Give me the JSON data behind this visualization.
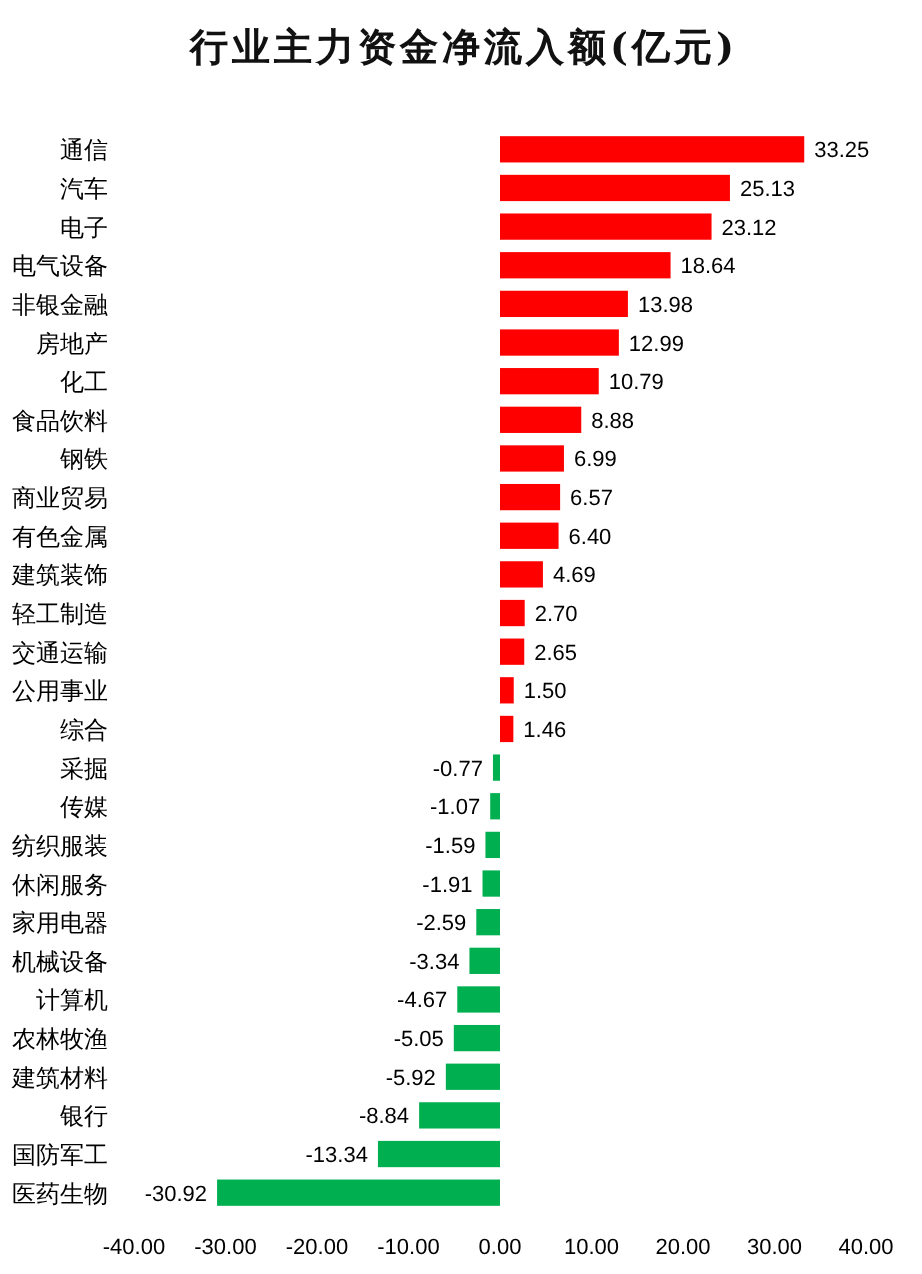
{
  "chart_data": {
    "type": "bar",
    "orientation": "horizontal",
    "title": "行业主力资金净流入额(亿元)",
    "categories": [
      "通信",
      "汽车",
      "电子",
      "电气设备",
      "非银金融",
      "房地产",
      "化工",
      "食品饮料",
      "钢铁",
      "商业贸易",
      "有色金属",
      "建筑装饰",
      "轻工制造",
      "交通运输",
      "公用事业",
      "综合",
      "采掘",
      "传媒",
      "纺织服装",
      "休闲服务",
      "家用电器",
      "机械设备",
      "计算机",
      "农林牧渔",
      "建筑材料",
      "银行",
      "国防军工",
      "医药生物"
    ],
    "values": [
      33.25,
      25.13,
      23.12,
      18.64,
      13.98,
      12.99,
      10.79,
      8.88,
      6.99,
      6.57,
      6.4,
      4.69,
      2.7,
      2.65,
      1.5,
      1.46,
      -0.77,
      -1.07,
      -1.59,
      -1.91,
      -2.59,
      -3.34,
      -4.67,
      -5.05,
      -5.92,
      -8.84,
      -13.34,
      -30.92
    ],
    "value_labels": [
      "33.25",
      "25.13",
      "23.12",
      "18.64",
      "13.98",
      "12.99",
      "10.79",
      "8.88",
      "6.99",
      "6.57",
      "6.40",
      "4.69",
      "2.70",
      "2.65",
      "1.50",
      "1.46",
      "-0.77",
      "-1.07",
      "-1.59",
      "-1.91",
      "-2.59",
      "-3.34",
      "-4.67",
      "-5.05",
      "-5.92",
      "-8.84",
      "-13.34",
      "-30.92"
    ],
    "colors": [
      "#ff0000",
      "#ff0000",
      "#ff0000",
      "#ff0000",
      "#ff0000",
      "#ff0000",
      "#ff0000",
      "#ff0000",
      "#ff0000",
      "#ff0000",
      "#ff0000",
      "#ff0000",
      "#ff0000",
      "#ff0000",
      "#ff0000",
      "#ff0000",
      "#00b050",
      "#00b050",
      "#00b050",
      "#00b050",
      "#00b050",
      "#00b050",
      "#00b050",
      "#00b050",
      "#00b050",
      "#00b050",
      "#00b050",
      "#00b050"
    ],
    "xlim": [
      -40,
      40
    ],
    "xticks": [
      {
        "value": -40,
        "label": "-40.00"
      },
      {
        "value": -30,
        "label": "-30.00"
      },
      {
        "value": -20,
        "label": "-20.00"
      },
      {
        "value": -10,
        "label": "-10.00"
      },
      {
        "value": 0,
        "label": "0.00"
      },
      {
        "value": 10,
        "label": "10.00"
      },
      {
        "value": 20,
        "label": "20.00"
      },
      {
        "value": 30,
        "label": "30.00"
      },
      {
        "value": 40,
        "label": "40.00"
      }
    ]
  }
}
